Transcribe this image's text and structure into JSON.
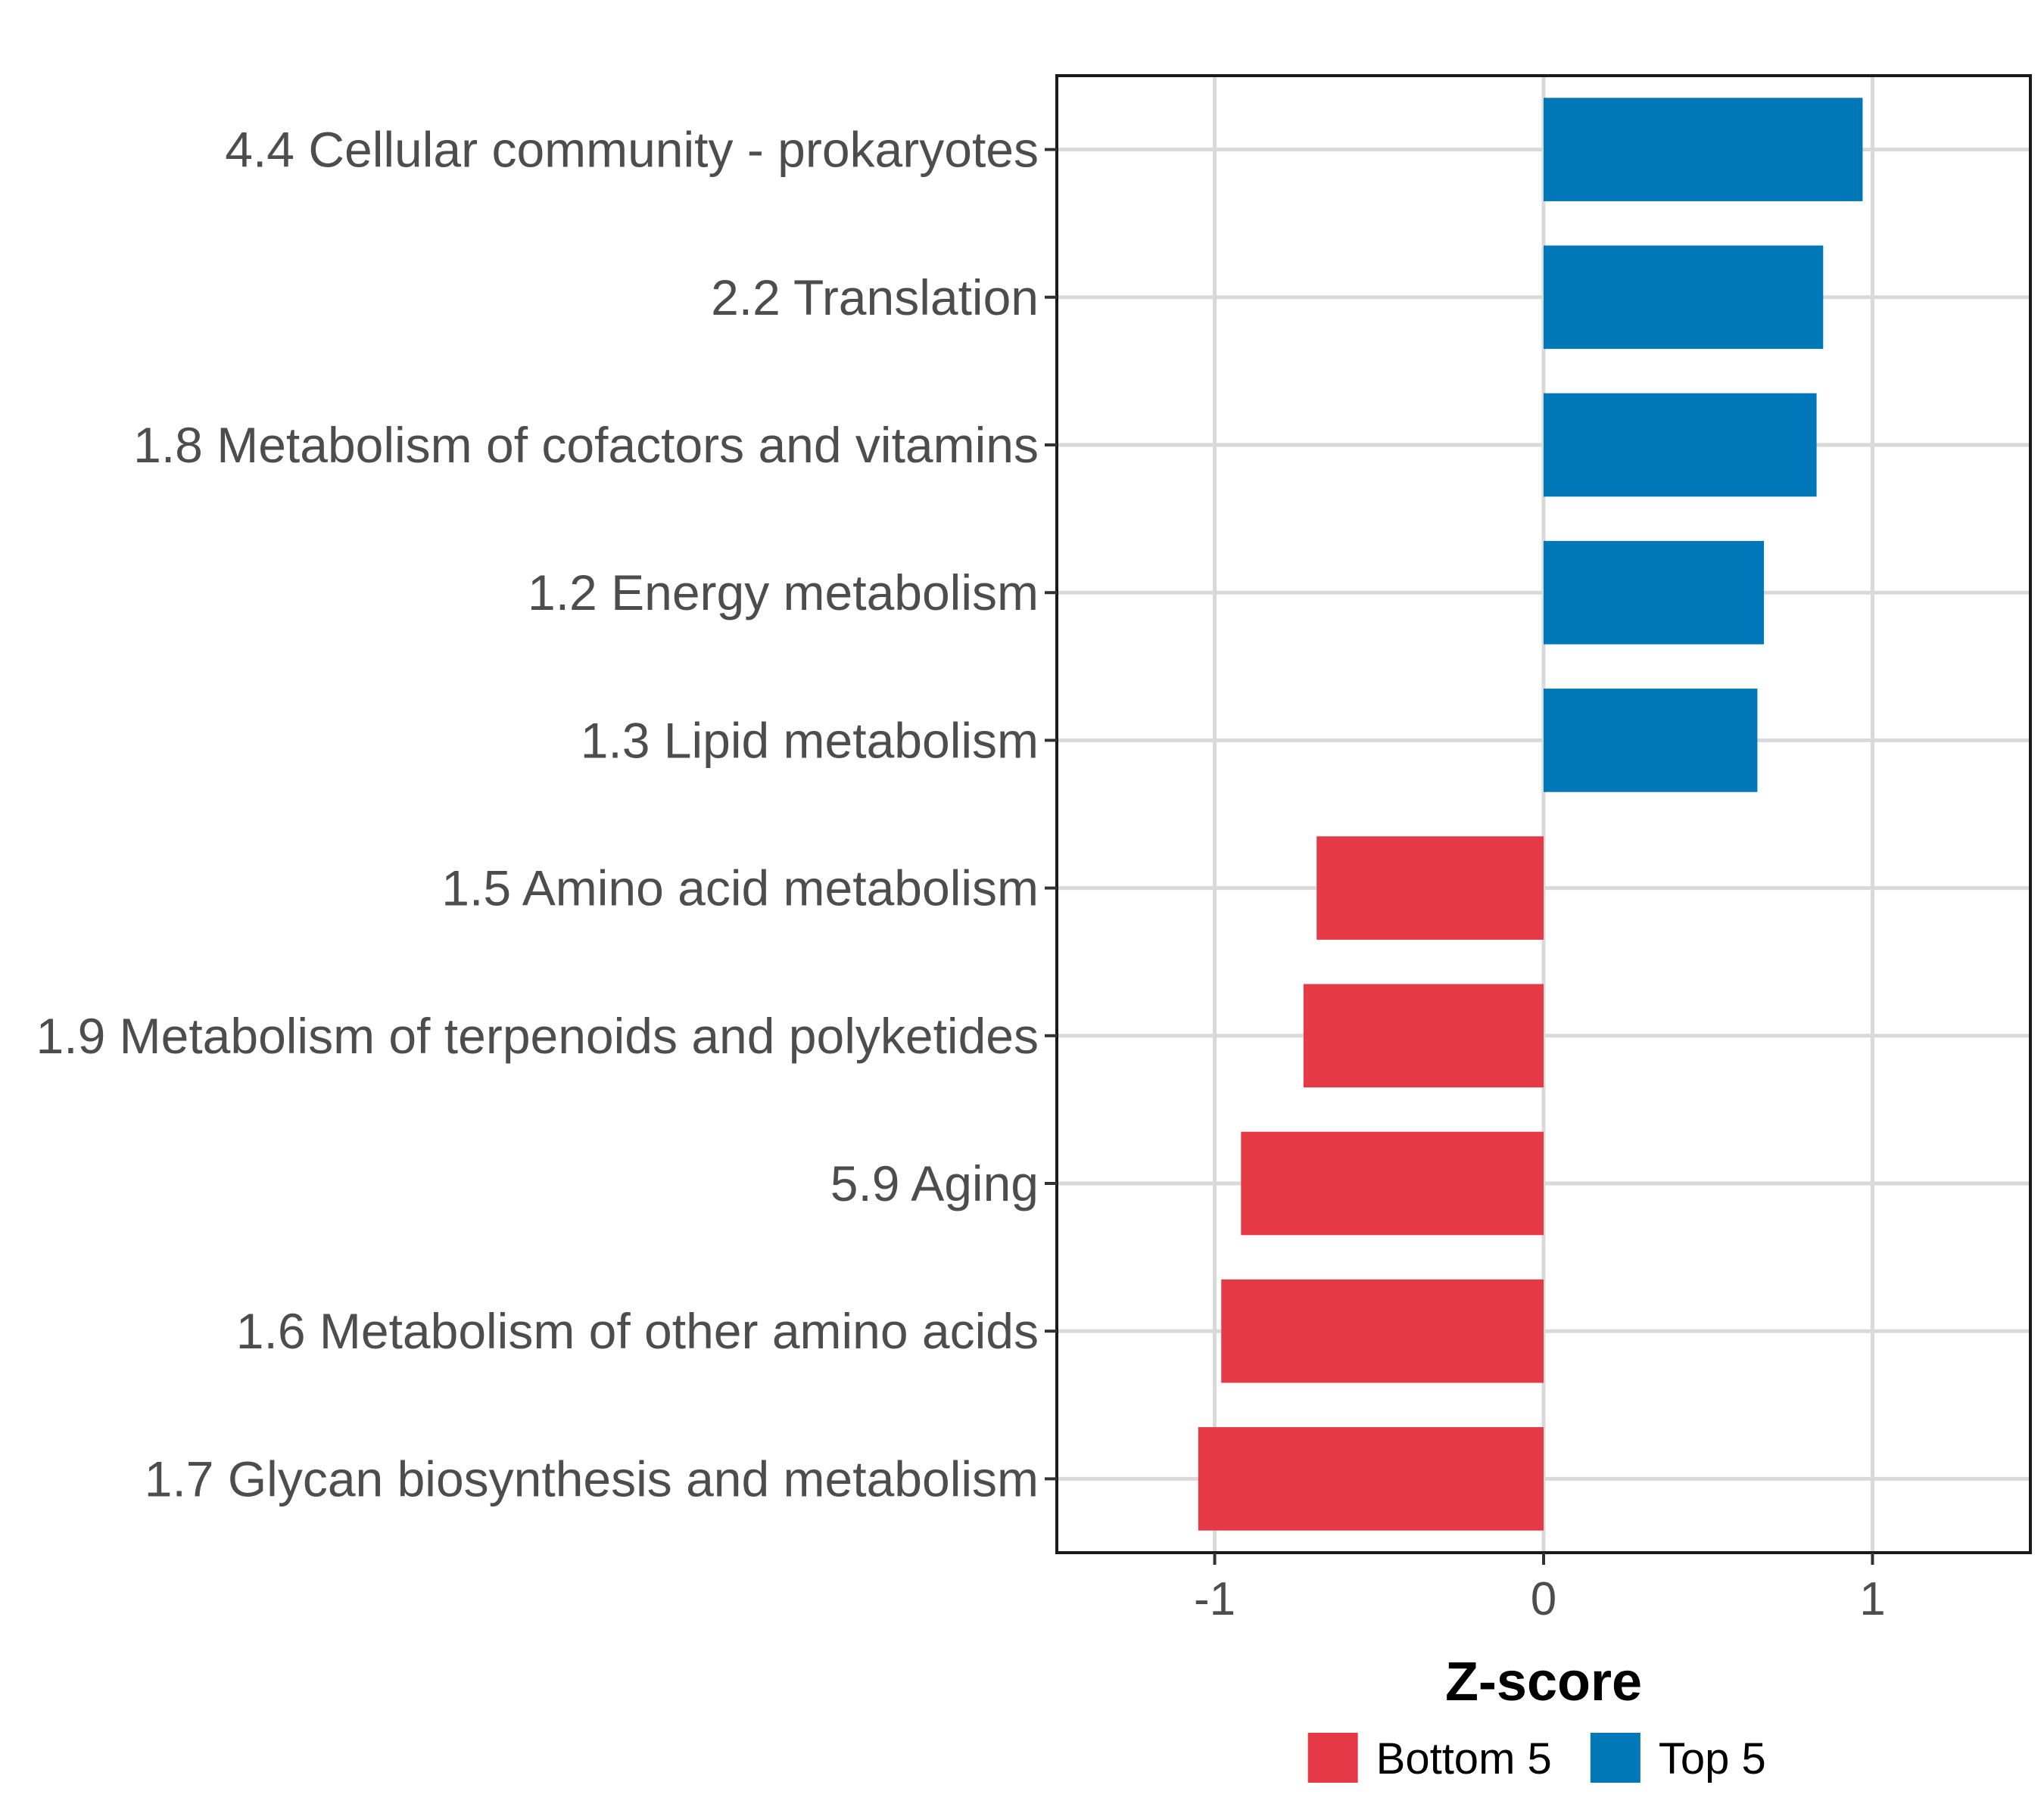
{
  "chart_data": {
    "type": "bar",
    "orientation": "horizontal",
    "categories": [
      "4.4 Cellular community - prokaryotes",
      "2.2 Translation",
      "1.8 Metabolism of cofactors and vitamins",
      "1.2 Energy metabolism",
      "1.3 Lipid metabolism",
      "1.5 Amino acid metabolism",
      "1.9 Metabolism of terpenoids and polyketides",
      "5.9 Aging",
      "1.6 Metabolism of other amino acids",
      "1.7 Glycan biosynthesis and metabolism"
    ],
    "values": [
      0.97,
      0.85,
      0.83,
      0.67,
      0.65,
      -0.69,
      -0.73,
      -0.92,
      -0.98,
      -1.05
    ],
    "groups": [
      "Top 5",
      "Top 5",
      "Top 5",
      "Top 5",
      "Top 5",
      "Bottom 5",
      "Bottom 5",
      "Bottom 5",
      "Bottom 5",
      "Bottom 5"
    ],
    "xlabel": "Z-score",
    "ylabel": "",
    "xlim": [
      -1.48,
      1.48
    ],
    "xticks": [
      -1,
      0,
      1
    ],
    "xtick_labels": [
      "-1",
      "0",
      "1"
    ],
    "grid": true,
    "legend": {
      "position": "bottom",
      "items": [
        {
          "label": "Bottom 5",
          "color": "#e63946"
        },
        {
          "label": "Top 5",
          "color": "#0077b6"
        }
      ]
    }
  }
}
